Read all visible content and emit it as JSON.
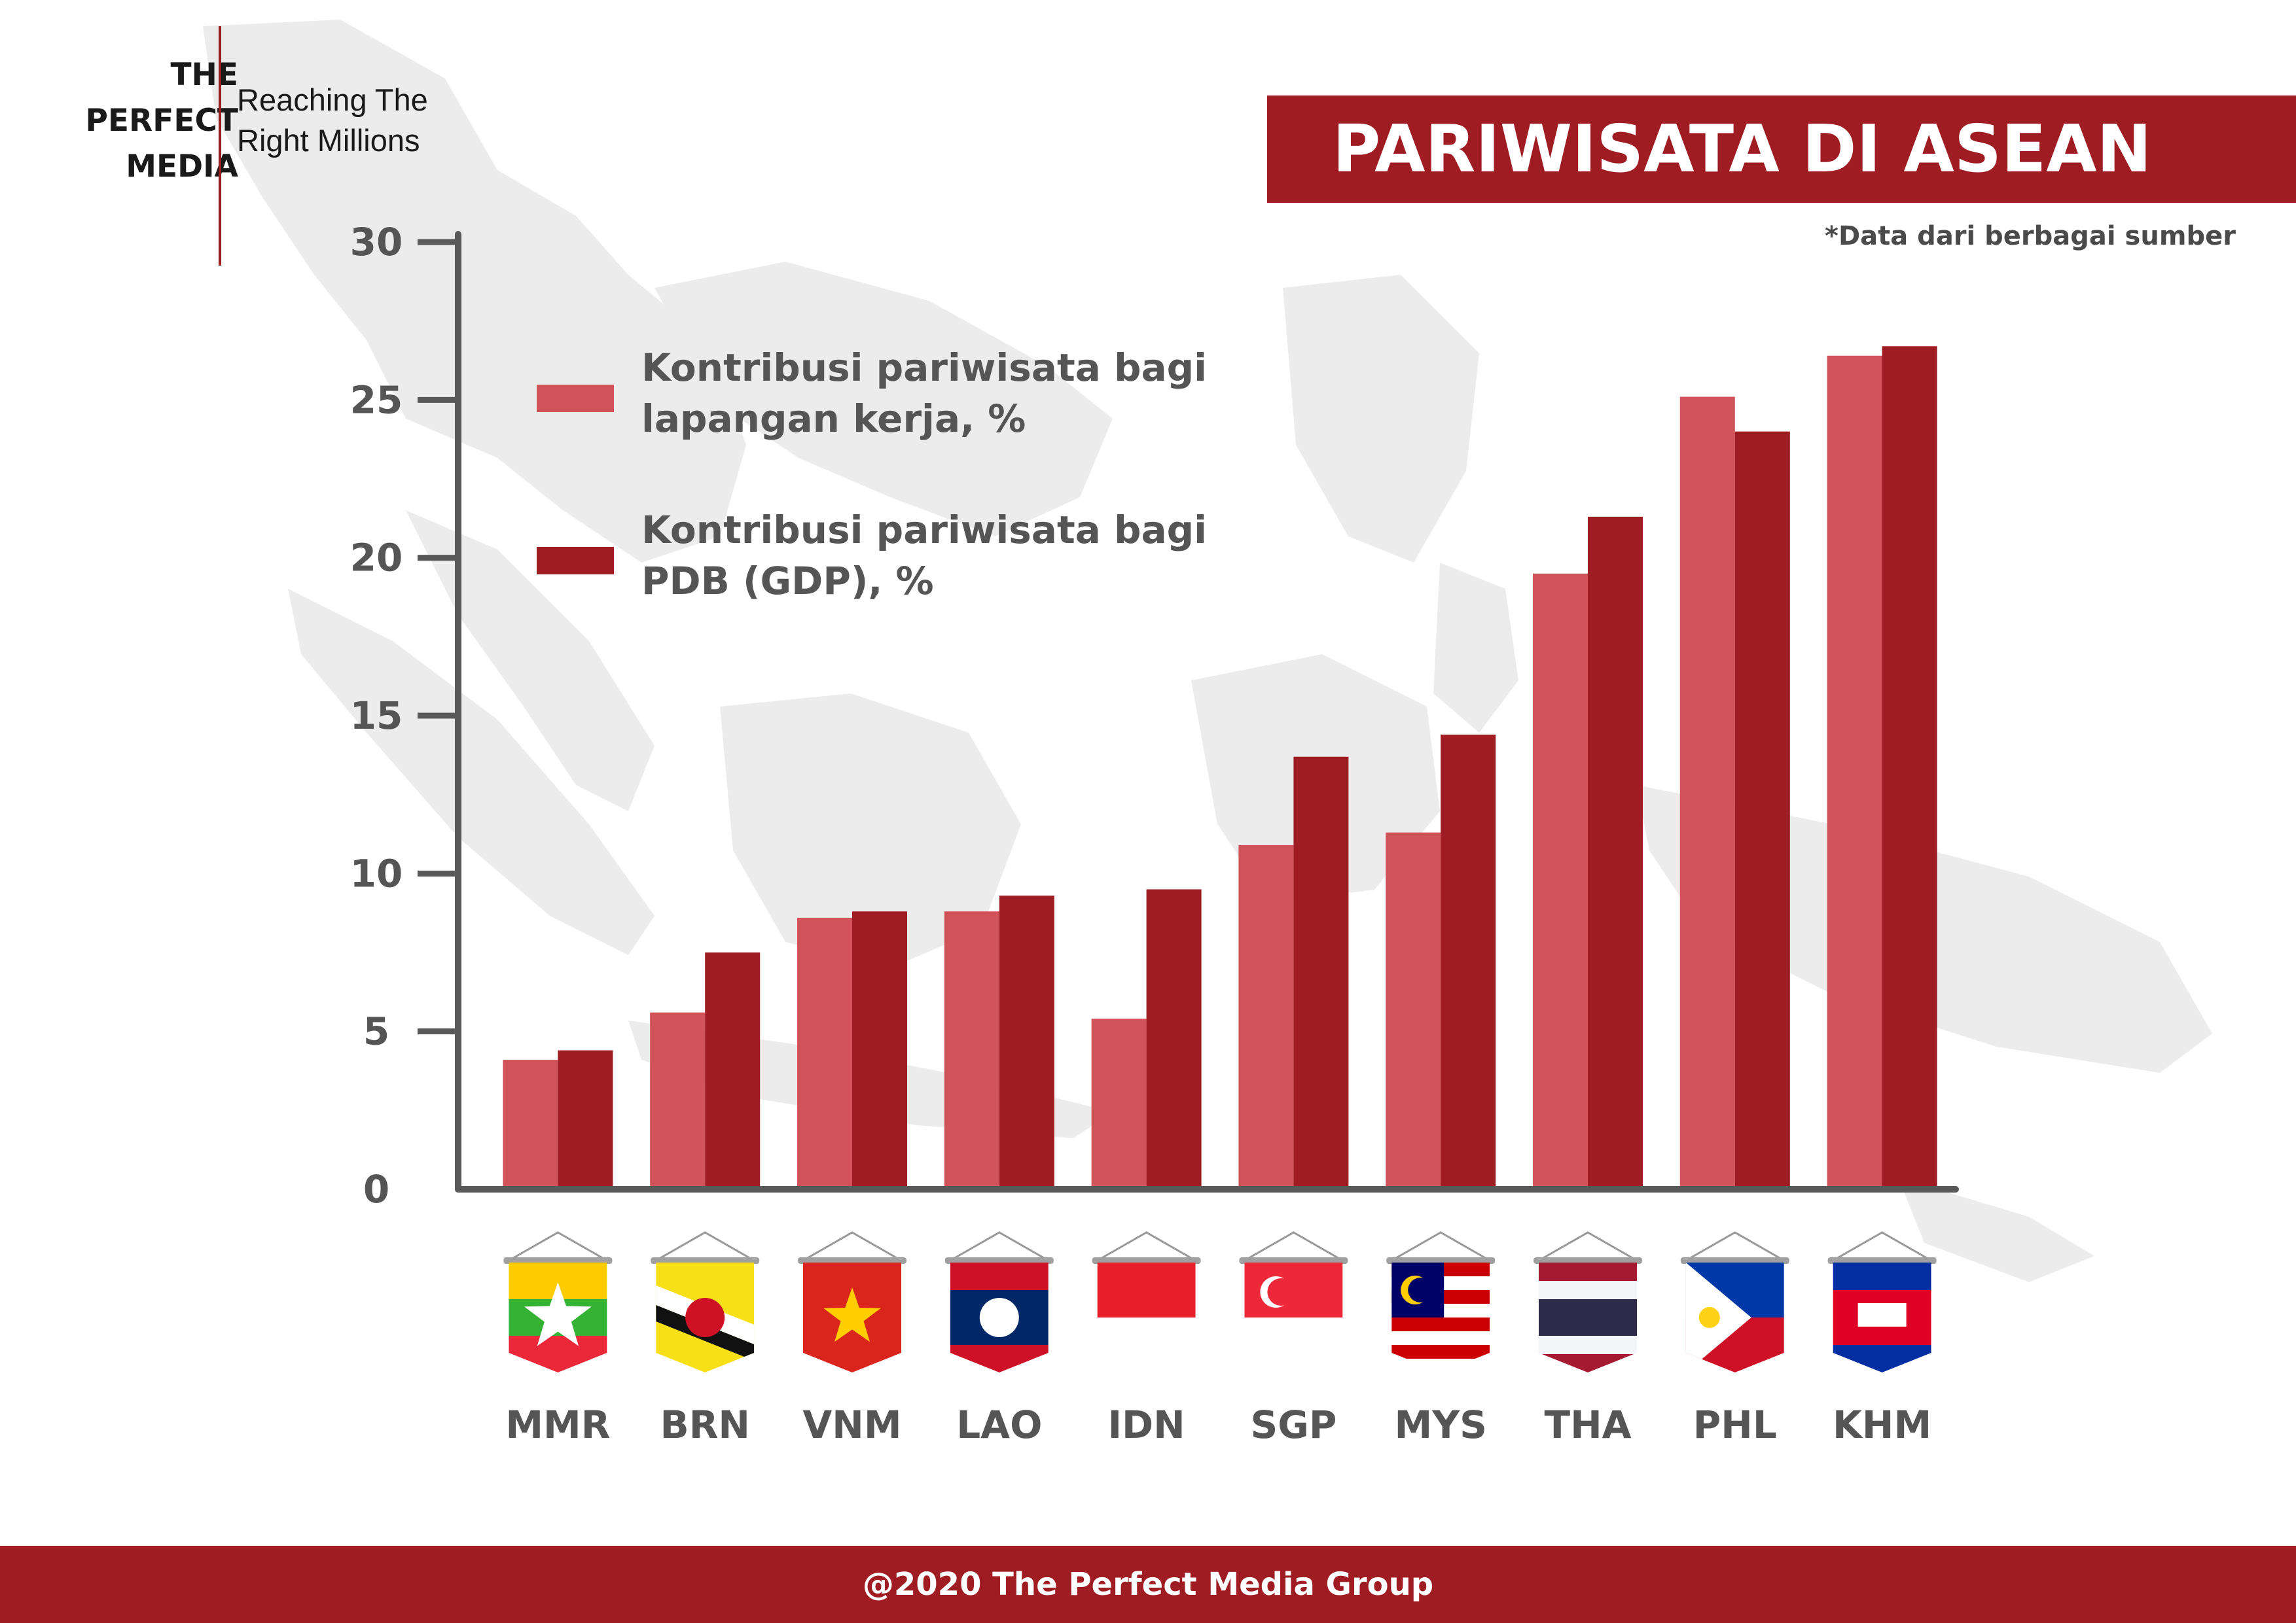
{
  "brand": {
    "name_lines": [
      "THE",
      "PERFECT",
      "MEDIA"
    ],
    "tagline_lines": [
      "Reaching The",
      "Right Millions"
    ]
  },
  "title": "PARIWISATA DI ASEAN",
  "source_note": "*Data dari berbagai sumber",
  "footer": "@2020 The Perfect Media Group",
  "colors": {
    "brand_red": "#9e1c22",
    "series_light": "#d2525a",
    "series_dark": "#9e1c22",
    "axis": "#595959",
    "map": "#ececec"
  },
  "chart_data": {
    "type": "bar",
    "title": "PARIWISATA DI ASEAN",
    "categories": [
      "MMR",
      "BRN",
      "VNM",
      "LAO",
      "IDN",
      "SGP",
      "MYS",
      "THA",
      "PHL",
      "KHM"
    ],
    "series": [
      {
        "name": "Kontribusi pariwisata bagi lapangan kerja, %",
        "legend_lines": [
          "Kontribusi pariwisata bagi",
          "lapangan kerja, %"
        ],
        "color": "#d2525a",
        "values": [
          4.1,
          5.6,
          8.6,
          8.8,
          5.4,
          10.9,
          11.3,
          19.5,
          25.1,
          26.4
        ]
      },
      {
        "name": "Kontribusi pariwisata bagi PDB (GDP), %",
        "legend_lines": [
          "Kontribusi pariwisata bagi",
          "PDB (GDP), %"
        ],
        "color": "#9e1c22",
        "values": [
          4.4,
          7.5,
          8.8,
          9.3,
          9.5,
          13.7,
          14.4,
          21.3,
          24.0,
          26.7
        ]
      }
    ],
    "yticks": [
      0,
      5,
      10,
      15,
      20,
      25,
      30
    ],
    "ylim": [
      0,
      30
    ],
    "grid": false,
    "legend_position": "top-left",
    "xlabel": "",
    "ylabel": "",
    "category_flags": [
      "myanmar-flag-icon",
      "brunei-flag-icon",
      "vietnam-flag-icon",
      "laos-flag-icon",
      "indonesia-flag-icon",
      "singapore-flag-icon",
      "malaysia-flag-icon",
      "thailand-flag-icon",
      "philippines-flag-icon",
      "cambodia-flag-icon"
    ]
  }
}
